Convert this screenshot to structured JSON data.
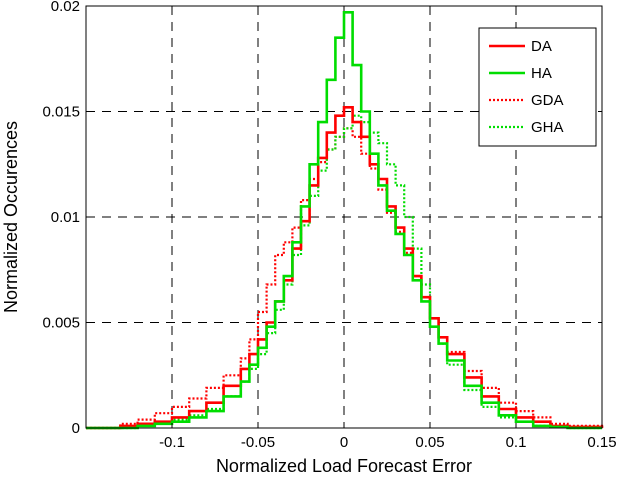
{
  "chart_data": {
    "type": "line",
    "title": "",
    "xlabel": "Normalized Load Forecast Error",
    "ylabel": "Normalized Occurences",
    "xlim": [
      -0.15,
      0.15
    ],
    "ylim": [
      0,
      0.02
    ],
    "grid": true,
    "grid_style": "dashed",
    "legend_position": "top-right",
    "x_ticks": [
      {
        "v": -0.1,
        "label": "-0.1"
      },
      {
        "v": -0.05,
        "label": "-0.05"
      },
      {
        "v": 0,
        "label": "0"
      },
      {
        "v": 0.05,
        "label": "0.05"
      },
      {
        "v": 0.1,
        "label": "0.1"
      },
      {
        "v": 0.15,
        "label": "0.15"
      }
    ],
    "y_ticks": [
      {
        "v": 0,
        "label": "0"
      },
      {
        "v": 0.005,
        "label": "0.005"
      },
      {
        "v": 0.01,
        "label": "0.01"
      },
      {
        "v": 0.015,
        "label": "0.015"
      },
      {
        "v": 0.02,
        "label": "0.02"
      }
    ],
    "x": [
      -0.15,
      -0.13,
      -0.12,
      -0.11,
      -0.1,
      -0.09,
      -0.08,
      -0.07,
      -0.06,
      -0.055,
      -0.05,
      -0.045,
      -0.04,
      -0.035,
      -0.03,
      -0.025,
      -0.02,
      -0.015,
      -0.01,
      -0.005,
      0,
      0.005,
      0.01,
      0.015,
      0.02,
      0.025,
      0.03,
      0.035,
      0.04,
      0.045,
      0.05,
      0.055,
      0.06,
      0.07,
      0.08,
      0.09,
      0.1,
      0.11,
      0.12,
      0.13,
      0.15
    ],
    "series": [
      {
        "name": "DA",
        "color": "#ff0000",
        "style": "solid",
        "values": [
          0,
          0.0001,
          0.0002,
          0.0003,
          0.0005,
          0.0008,
          0.0012,
          0.002,
          0.0028,
          0.0035,
          0.0042,
          0.005,
          0.006,
          0.007,
          0.0085,
          0.0098,
          0.0115,
          0.0128,
          0.014,
          0.0148,
          0.0152,
          0.0145,
          0.0138,
          0.0125,
          0.0118,
          0.0105,
          0.0095,
          0.0085,
          0.0072,
          0.0062,
          0.0052,
          0.0043,
          0.0035,
          0.0024,
          0.0015,
          0.0009,
          0.0005,
          0.0003,
          0.0001,
          5e-05,
          0
        ]
      },
      {
        "name": "HA",
        "color": "#00dd00",
        "style": "solid",
        "values": [
          0,
          0,
          0.0001,
          0.0002,
          0.0003,
          0.0005,
          0.0008,
          0.0015,
          0.0022,
          0.003,
          0.0038,
          0.0048,
          0.006,
          0.0072,
          0.0088,
          0.0105,
          0.0125,
          0.0145,
          0.0165,
          0.0185,
          0.0197,
          0.0172,
          0.015,
          0.013,
          0.0115,
          0.0103,
          0.0092,
          0.0082,
          0.007,
          0.006,
          0.0048,
          0.004,
          0.0032,
          0.002,
          0.0012,
          0.0006,
          0.0003,
          0.0001,
          5e-05,
          0,
          0
        ]
      },
      {
        "name": "GDA",
        "color": "#ff0000",
        "style": "dotted",
        "values": [
          0,
          0.0002,
          0.0004,
          0.0007,
          0.001,
          0.0014,
          0.0019,
          0.0025,
          0.0033,
          0.0042,
          0.0055,
          0.0068,
          0.0082,
          0.0088,
          0.0095,
          0.0108,
          0.0118,
          0.0126,
          0.0132,
          0.0138,
          0.0142,
          0.0138,
          0.013,
          0.0123,
          0.0113,
          0.0102,
          0.0093,
          0.0083,
          0.0072,
          0.0062,
          0.0052,
          0.0043,
          0.0036,
          0.0027,
          0.0019,
          0.0012,
          0.0008,
          0.0005,
          0.0002,
          0.0001,
          0
        ]
      },
      {
        "name": "GHA",
        "color": "#00dd00",
        "style": "dotted",
        "values": [
          0,
          0,
          0.0001,
          0.0002,
          0.0004,
          0.0006,
          0.0009,
          0.0015,
          0.0022,
          0.0028,
          0.0035,
          0.0045,
          0.0056,
          0.0068,
          0.0082,
          0.0096,
          0.011,
          0.0122,
          0.0132,
          0.0138,
          0.0142,
          0.0148,
          0.0145,
          0.014,
          0.0135,
          0.0125,
          0.0115,
          0.01,
          0.0085,
          0.0068,
          0.0052,
          0.004,
          0.003,
          0.0018,
          0.001,
          0.0005,
          0.0003,
          0.0001,
          5e-05,
          0,
          0
        ]
      }
    ]
  }
}
